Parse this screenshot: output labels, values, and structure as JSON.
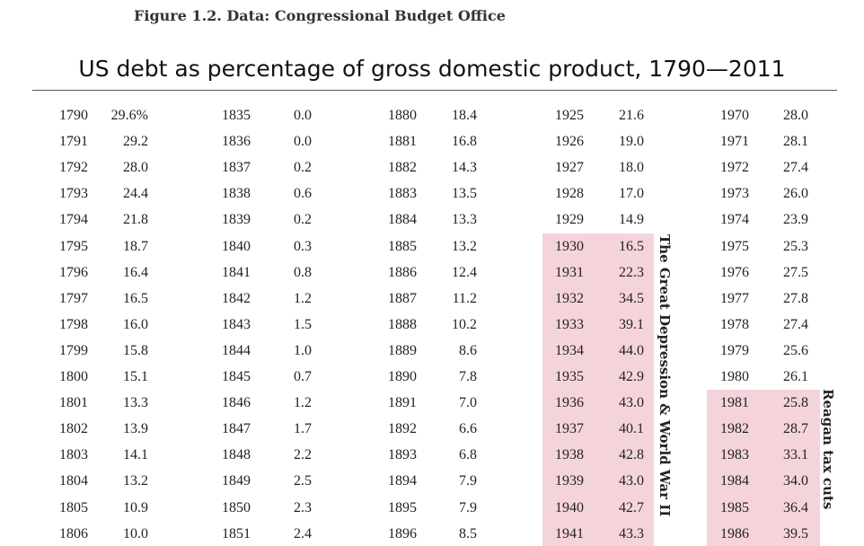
{
  "caption": "Figure 1.2. Data: Congressional Budget Office",
  "title": "US debt as percentage of gross domestic product, 1790—2011",
  "highlight_color": "#f4d4da",
  "annotations": {
    "depression": "The Great Depression & World War II",
    "reagan": "Reagan tax cuts"
  },
  "table": {
    "columns": [
      {
        "rows": [
          {
            "year": "1790",
            "value": "29.6%"
          },
          {
            "year": "1791",
            "value": "29.2"
          },
          {
            "year": "1792",
            "value": "28.0"
          },
          {
            "year": "1793",
            "value": "24.4"
          },
          {
            "year": "1794",
            "value": "21.8"
          },
          {
            "year": "1795",
            "value": "18.7"
          },
          {
            "year": "1796",
            "value": "16.4"
          },
          {
            "year": "1797",
            "value": "16.5"
          },
          {
            "year": "1798",
            "value": "16.0"
          },
          {
            "year": "1799",
            "value": "15.8"
          },
          {
            "year": "1800",
            "value": "15.1"
          },
          {
            "year": "1801",
            "value": "13.3"
          },
          {
            "year": "1802",
            "value": "13.9"
          },
          {
            "year": "1803",
            "value": "14.1"
          },
          {
            "year": "1804",
            "value": "13.2"
          },
          {
            "year": "1805",
            "value": "10.9"
          },
          {
            "year": "1806",
            "value": "10.0"
          }
        ]
      },
      {
        "rows": [
          {
            "year": "1835",
            "value": "0.0"
          },
          {
            "year": "1836",
            "value": "0.0"
          },
          {
            "year": "1837",
            "value": "0.2"
          },
          {
            "year": "1838",
            "value": "0.6"
          },
          {
            "year": "1839",
            "value": "0.2"
          },
          {
            "year": "1840",
            "value": "0.3"
          },
          {
            "year": "1841",
            "value": "0.8"
          },
          {
            "year": "1842",
            "value": "1.2"
          },
          {
            "year": "1843",
            "value": "1.5"
          },
          {
            "year": "1844",
            "value": "1.0"
          },
          {
            "year": "1845",
            "value": "0.7"
          },
          {
            "year": "1846",
            "value": "1.2"
          },
          {
            "year": "1847",
            "value": "1.7"
          },
          {
            "year": "1848",
            "value": "2.2"
          },
          {
            "year": "1849",
            "value": "2.5"
          },
          {
            "year": "1850",
            "value": "2.3"
          },
          {
            "year": "1851",
            "value": "2.4"
          }
        ]
      },
      {
        "rows": [
          {
            "year": "1880",
            "value": "18.4"
          },
          {
            "year": "1881",
            "value": "16.8"
          },
          {
            "year": "1882",
            "value": "14.3"
          },
          {
            "year": "1883",
            "value": "13.5"
          },
          {
            "year": "1884",
            "value": "13.3"
          },
          {
            "year": "1885",
            "value": "13.2"
          },
          {
            "year": "1886",
            "value": "12.4"
          },
          {
            "year": "1887",
            "value": "11.2"
          },
          {
            "year": "1888",
            "value": "10.2"
          },
          {
            "year": "1889",
            "value": "8.6"
          },
          {
            "year": "1890",
            "value": "7.8"
          },
          {
            "year": "1891",
            "value": "7.0"
          },
          {
            "year": "1892",
            "value": "6.6"
          },
          {
            "year": "1893",
            "value": "6.8"
          },
          {
            "year": "1894",
            "value": "7.9"
          },
          {
            "year": "1895",
            "value": "7.9"
          },
          {
            "year": "1896",
            "value": "8.5"
          }
        ]
      },
      {
        "highlight_from": 5,
        "rows": [
          {
            "year": "1925",
            "value": "21.6"
          },
          {
            "year": "1926",
            "value": "19.0"
          },
          {
            "year": "1927",
            "value": "18.0"
          },
          {
            "year": "1928",
            "value": "17.0"
          },
          {
            "year": "1929",
            "value": "14.9"
          },
          {
            "year": "1930",
            "value": "16.5"
          },
          {
            "year": "1931",
            "value": "22.3"
          },
          {
            "year": "1932",
            "value": "34.5"
          },
          {
            "year": "1933",
            "value": "39.1"
          },
          {
            "year": "1934",
            "value": "44.0"
          },
          {
            "year": "1935",
            "value": "42.9"
          },
          {
            "year": "1936",
            "value": "43.0"
          },
          {
            "year": "1937",
            "value": "40.1"
          },
          {
            "year": "1938",
            "value": "42.8"
          },
          {
            "year": "1939",
            "value": "43.0"
          },
          {
            "year": "1940",
            "value": "42.7"
          },
          {
            "year": "1941",
            "value": "43.3"
          }
        ]
      },
      {
        "highlight_from": 11,
        "rows": [
          {
            "year": "1970",
            "value": "28.0"
          },
          {
            "year": "1971",
            "value": "28.1"
          },
          {
            "year": "1972",
            "value": "27.4"
          },
          {
            "year": "1973",
            "value": "26.0"
          },
          {
            "year": "1974",
            "value": "23.9"
          },
          {
            "year": "1975",
            "value": "25.3"
          },
          {
            "year": "1976",
            "value": "27.5"
          },
          {
            "year": "1977",
            "value": "27.8"
          },
          {
            "year": "1978",
            "value": "27.4"
          },
          {
            "year": "1979",
            "value": "25.6"
          },
          {
            "year": "1980",
            "value": "26.1"
          },
          {
            "year": "1981",
            "value": "25.8"
          },
          {
            "year": "1982",
            "value": "28.7"
          },
          {
            "year": "1983",
            "value": "33.1"
          },
          {
            "year": "1984",
            "value": "34.0"
          },
          {
            "year": "1985",
            "value": "36.4"
          },
          {
            "year": "1986",
            "value": "39.5"
          }
        ]
      }
    ]
  }
}
